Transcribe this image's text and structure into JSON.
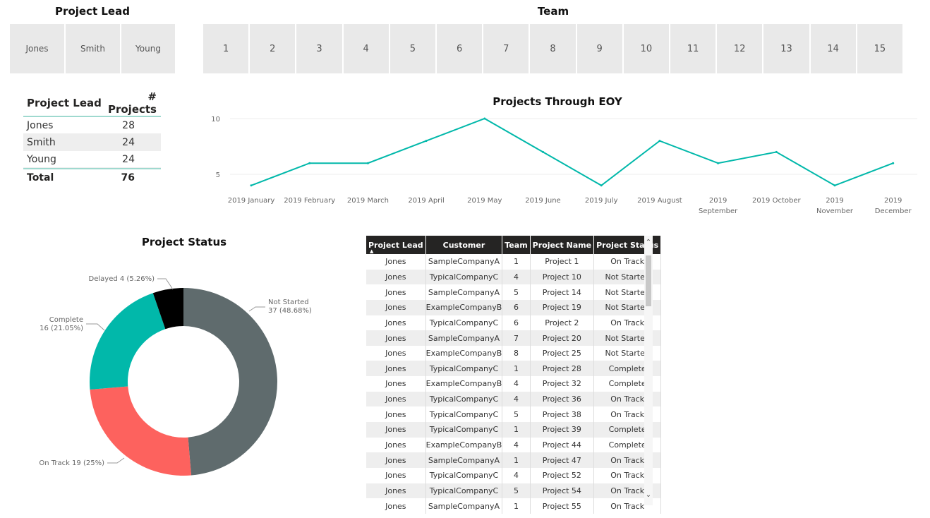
{
  "project_lead_slicer": {
    "title": "Project Lead",
    "items": [
      "Jones",
      "Smith",
      "Young"
    ]
  },
  "team_slicer": {
    "title": "Team",
    "items": [
      "1",
      "2",
      "3",
      "4",
      "5",
      "6",
      "7",
      "8",
      "9",
      "10",
      "11",
      "12",
      "13",
      "14",
      "15"
    ]
  },
  "summary_table": {
    "headers": [
      "Project Lead",
      "# Projects"
    ],
    "rows": [
      {
        "lead": "Jones",
        "count": "28"
      },
      {
        "lead": "Smith",
        "count": "24"
      },
      {
        "lead": "Young",
        "count": "24"
      }
    ],
    "total": {
      "label": "Total",
      "count": "76"
    }
  },
  "line_chart_title": "Projects Through EOY",
  "donut_chart_title": "Project Status",
  "chart_data": [
    {
      "type": "line",
      "title": "Projects Through EOY",
      "x": [
        "2019 January",
        "2019 February",
        "2019 March",
        "2019 April",
        "2019 May",
        "2019 June",
        "2019 July",
        "2019 August",
        "2019 September",
        "2019 October",
        "2019 November",
        "2019 December"
      ],
      "values": [
        4,
        6,
        6,
        8,
        10,
        7,
        4,
        8,
        6,
        7,
        4,
        6
      ],
      "yticks": [
        5,
        10
      ],
      "ylim": [
        4,
        10
      ],
      "grid": true,
      "color": "#01b8aa"
    },
    {
      "type": "pie",
      "title": "Project Status",
      "donut": true,
      "slices": [
        {
          "label": "Not Started",
          "value": 37,
          "pct": "48.68%",
          "color": "#5f6b6d",
          "text1": "Not Started",
          "text2": "37 (48.68%)"
        },
        {
          "label": "On Track",
          "value": 19,
          "pct": "25%",
          "color": "#fd625e",
          "text1": "On Track 19 (25%)",
          "text2": ""
        },
        {
          "label": "Complete",
          "value": 16,
          "pct": "21.05%",
          "color": "#01b8aa",
          "text1": "Complete",
          "text2": "16 (21.05%)"
        },
        {
          "label": "Delayed",
          "value": 4,
          "pct": "5.26%",
          "color": "#000000",
          "text1": "Delayed 4 (5.26%)",
          "text2": ""
        }
      ]
    }
  ],
  "detail_table": {
    "headers": [
      "Project Lead",
      "Customer",
      "Team",
      "Project Name",
      "Project Status"
    ],
    "rows": [
      [
        "Jones",
        "SampleCompanyA",
        "1",
        "Project 1",
        "On Track"
      ],
      [
        "Jones",
        "TypicalCompanyC",
        "4",
        "Project 10",
        "Not Started"
      ],
      [
        "Jones",
        "SampleCompanyA",
        "5",
        "Project 14",
        "Not Started"
      ],
      [
        "Jones",
        "ExampleCompanyB",
        "6",
        "Project 19",
        "Not Started"
      ],
      [
        "Jones",
        "TypicalCompanyC",
        "6",
        "Project 2",
        "On Track"
      ],
      [
        "Jones",
        "SampleCompanyA",
        "7",
        "Project 20",
        "Not Started"
      ],
      [
        "Jones",
        "ExampleCompanyB",
        "8",
        "Project 25",
        "Not Started"
      ],
      [
        "Jones",
        "TypicalCompanyC",
        "1",
        "Project 28",
        "Complete"
      ],
      [
        "Jones",
        "ExampleCompanyB",
        "4",
        "Project 32",
        "Complete"
      ],
      [
        "Jones",
        "TypicalCompanyC",
        "4",
        "Project 36",
        "On Track"
      ],
      [
        "Jones",
        "TypicalCompanyC",
        "5",
        "Project 38",
        "On Track"
      ],
      [
        "Jones",
        "TypicalCompanyC",
        "1",
        "Project 39",
        "Complete"
      ],
      [
        "Jones",
        "ExampleCompanyB",
        "4",
        "Project 44",
        "Complete"
      ],
      [
        "Jones",
        "SampleCompanyA",
        "1",
        "Project 47",
        "On Track"
      ],
      [
        "Jones",
        "TypicalCompanyC",
        "4",
        "Project 52",
        "On Track"
      ],
      [
        "Jones",
        "TypicalCompanyC",
        "5",
        "Project 54",
        "On Track"
      ],
      [
        "Jones",
        "SampleCompanyA",
        "1",
        "Project 55",
        "On Track"
      ]
    ]
  }
}
